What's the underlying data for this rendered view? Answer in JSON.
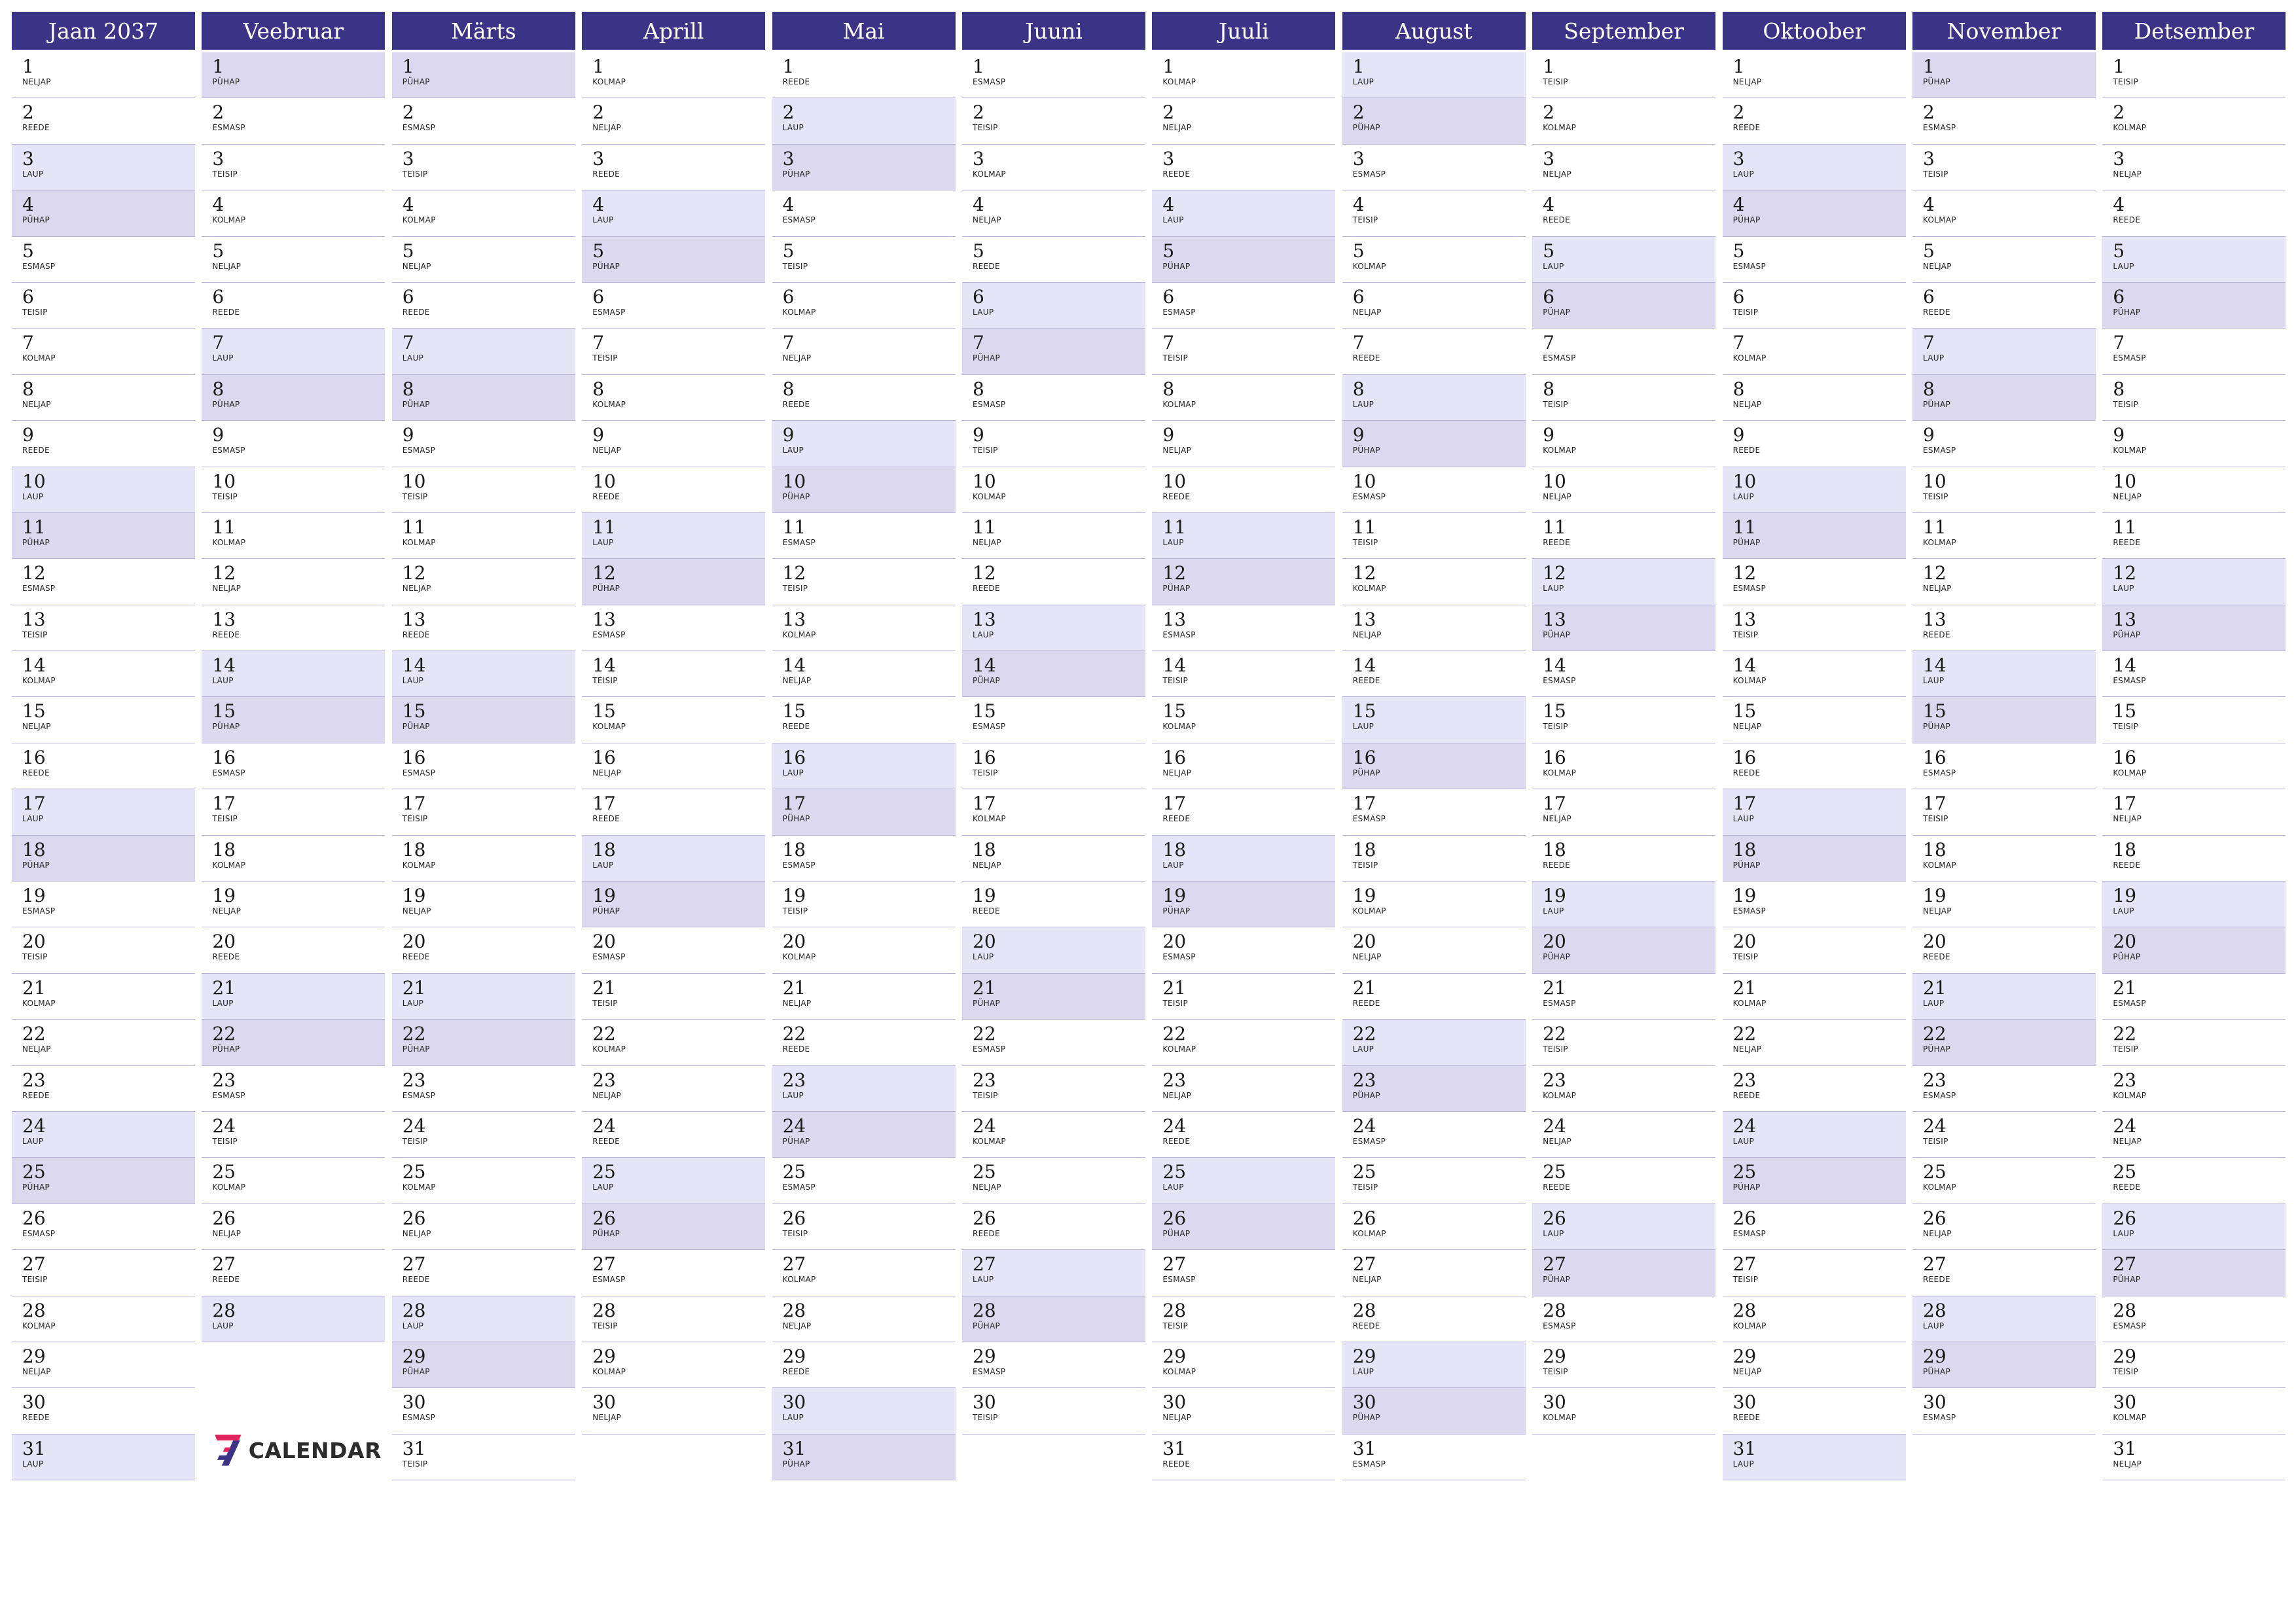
{
  "year": "2037",
  "colors": {
    "header": "#3b3486",
    "saturday": "#e6e5f8",
    "sunday": "#dcd8ee",
    "line": "#b8b4d8"
  },
  "weekday_names": [
    "PÜHAP",
    "ESMASP",
    "TEISIP",
    "KOLMAP",
    "NELJAP",
    "REEDE",
    "LAUP"
  ],
  "months": [
    {
      "title": "Jaan 2037",
      "start": 4,
      "days": 31
    },
    {
      "title": "Veebruar",
      "start": 0,
      "days": 28
    },
    {
      "title": "Märts",
      "start": 0,
      "days": 31
    },
    {
      "title": "Aprill",
      "start": 3,
      "days": 30
    },
    {
      "title": "Mai",
      "start": 5,
      "days": 31
    },
    {
      "title": "Juuni",
      "start": 1,
      "days": 30
    },
    {
      "title": "Juuli",
      "start": 3,
      "days": 31
    },
    {
      "title": "August",
      "start": 6,
      "days": 31
    },
    {
      "title": "September",
      "start": 2,
      "days": 30
    },
    {
      "title": "Oktoober",
      "start": 4,
      "days": 31
    },
    {
      "title": "November",
      "start": 0,
      "days": 30
    },
    {
      "title": "Detsember",
      "start": 2,
      "days": 31
    }
  ],
  "logo": {
    "mark": "7",
    "text": "CALENDAR",
    "icon": "seven-logo-icon"
  }
}
